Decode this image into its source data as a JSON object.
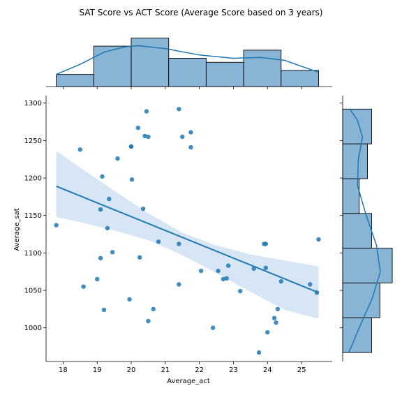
{
  "chart_data": {
    "type": "scatter",
    "title": "SAT Score vs ACT Score (Average Score based on 3 years)",
    "xlabel": "Average_act",
    "ylabel": "Average_sat",
    "xlim": [
      17.5,
      25.9
    ],
    "ylim": [
      955,
      1310
    ],
    "xticks": [
      "18",
      "19",
      "20",
      "21",
      "22",
      "23",
      "24",
      "25"
    ],
    "yticks": [
      "1000",
      "1050",
      "1100",
      "1150",
      "1200",
      "1250",
      "1300"
    ],
    "grid": false,
    "colors": {
      "points": "#1f77b4",
      "regression_line": "#1f77b4",
      "confidence_band": "#c6dbef",
      "histogram_fill": "#88b4d6",
      "kde": "#1f77b4"
    },
    "points": [
      {
        "x": 17.8,
        "y": 1137
      },
      {
        "x": 18.5,
        "y": 1238
      },
      {
        "x": 18.6,
        "y": 1055
      },
      {
        "x": 19.0,
        "y": 1065
      },
      {
        "x": 19.1,
        "y": 1158
      },
      {
        "x": 19.1,
        "y": 1093
      },
      {
        "x": 19.15,
        "y": 1202
      },
      {
        "x": 19.2,
        "y": 1024
      },
      {
        "x": 19.3,
        "y": 1133
      },
      {
        "x": 19.35,
        "y": 1172
      },
      {
        "x": 19.45,
        "y": 1101
      },
      {
        "x": 19.6,
        "y": 1226
      },
      {
        "x": 19.95,
        "y": 1038
      },
      {
        "x": 20.0,
        "y": 1242
      },
      {
        "x": 20.0,
        "y": 1242
      },
      {
        "x": 20.02,
        "y": 1198
      },
      {
        "x": 20.2,
        "y": 1267
      },
      {
        "x": 20.25,
        "y": 1094
      },
      {
        "x": 20.35,
        "y": 1159
      },
      {
        "x": 20.4,
        "y": 1256
      },
      {
        "x": 20.45,
        "y": 1289
      },
      {
        "x": 20.5,
        "y": 1255
      },
      {
        "x": 20.5,
        "y": 1009
      },
      {
        "x": 20.65,
        "y": 1025
      },
      {
        "x": 20.8,
        "y": 1115
      },
      {
        "x": 21.4,
        "y": 1292
      },
      {
        "x": 21.4,
        "y": 1112
      },
      {
        "x": 21.4,
        "y": 1058
      },
      {
        "x": 21.5,
        "y": 1255
      },
      {
        "x": 21.75,
        "y": 1261
      },
      {
        "x": 21.75,
        "y": 1241
      },
      {
        "x": 22.05,
        "y": 1076
      },
      {
        "x": 22.4,
        "y": 1000
      },
      {
        "x": 22.55,
        "y": 1076
      },
      {
        "x": 22.7,
        "y": 1065
      },
      {
        "x": 22.8,
        "y": 1066
      },
      {
        "x": 22.85,
        "y": 1083
      },
      {
        "x": 23.2,
        "y": 1049
      },
      {
        "x": 23.6,
        "y": 1079
      },
      {
        "x": 23.75,
        "y": 967
      },
      {
        "x": 23.9,
        "y": 1112
      },
      {
        "x": 23.95,
        "y": 1112
      },
      {
        "x": 23.95,
        "y": 1080
      },
      {
        "x": 24.0,
        "y": 994
      },
      {
        "x": 24.2,
        "y": 1013
      },
      {
        "x": 24.25,
        "y": 1007
      },
      {
        "x": 24.3,
        "y": 1025
      },
      {
        "x": 24.4,
        "y": 1062
      },
      {
        "x": 25.25,
        "y": 1058
      },
      {
        "x": 25.45,
        "y": 1047
      },
      {
        "x": 25.5,
        "y": 1118
      }
    ],
    "regression": {
      "x": [
        17.8,
        25.5
      ],
      "y": [
        1189,
        1047
      ],
      "ci_upper": [
        {
          "x": 17.8,
          "y": 1236
        },
        {
          "x": 18.5,
          "y": 1214
        },
        {
          "x": 19.5,
          "y": 1183
        },
        {
          "x": 20.5,
          "y": 1153
        },
        {
          "x": 21.5,
          "y": 1127
        },
        {
          "x": 22.5,
          "y": 1110
        },
        {
          "x": 23.5,
          "y": 1098
        },
        {
          "x": 24.5,
          "y": 1090
        },
        {
          "x": 25.5,
          "y": 1082
        }
      ],
      "ci_lower": [
        {
          "x": 17.8,
          "y": 1148
        },
        {
          "x": 18.5,
          "y": 1141
        },
        {
          "x": 19.5,
          "y": 1130
        },
        {
          "x": 20.5,
          "y": 1117
        },
        {
          "x": 21.5,
          "y": 1097
        },
        {
          "x": 22.5,
          "y": 1073
        },
        {
          "x": 23.5,
          "y": 1048
        },
        {
          "x": 24.5,
          "y": 1024
        },
        {
          "x": 25.5,
          "y": 1012
        }
      ]
    },
    "marginal_x_hist": {
      "bin_edges": [
        17.8,
        18.9,
        20.0,
        21.1,
        22.2,
        23.3,
        24.4,
        25.5
      ],
      "counts": [
        3,
        10,
        12,
        7,
        6,
        9,
        4
      ],
      "kde": [
        {
          "x": 17.8,
          "y": 3.0
        },
        {
          "x": 18.5,
          "y": 5.5
        },
        {
          "x": 19.2,
          "y": 8.5
        },
        {
          "x": 19.8,
          "y": 9.8
        },
        {
          "x": 20.2,
          "y": 10.1
        },
        {
          "x": 21.0,
          "y": 9.4
        },
        {
          "x": 22.0,
          "y": 7.8
        },
        {
          "x": 23.0,
          "y": 7.0
        },
        {
          "x": 23.8,
          "y": 7.2
        },
        {
          "x": 24.5,
          "y": 6.5
        },
        {
          "x": 25.5,
          "y": 3.5
        }
      ]
    },
    "marginal_y_hist": {
      "bin_edges": [
        967,
        1013.4,
        1059.9,
        1106.3,
        1152.7,
        1199.1,
        1245.6,
        1292
      ],
      "counts": [
        7,
        9,
        12,
        7,
        4,
        6,
        7
      ],
      "kde": [
        {
          "y": 967,
          "x": 1.5
        },
        {
          "y": 1000,
          "x": 4.0
        },
        {
          "y": 1040,
          "x": 7.2
        },
        {
          "y": 1075,
          "x": 9.1
        },
        {
          "y": 1110,
          "x": 8.2
        },
        {
          "y": 1150,
          "x": 5.7
        },
        {
          "y": 1190,
          "x": 3.6
        },
        {
          "y": 1225,
          "x": 3.8
        },
        {
          "y": 1255,
          "x": 4.8
        },
        {
          "y": 1278,
          "x": 3.5
        },
        {
          "y": 1292,
          "x": 1.7
        }
      ]
    }
  }
}
